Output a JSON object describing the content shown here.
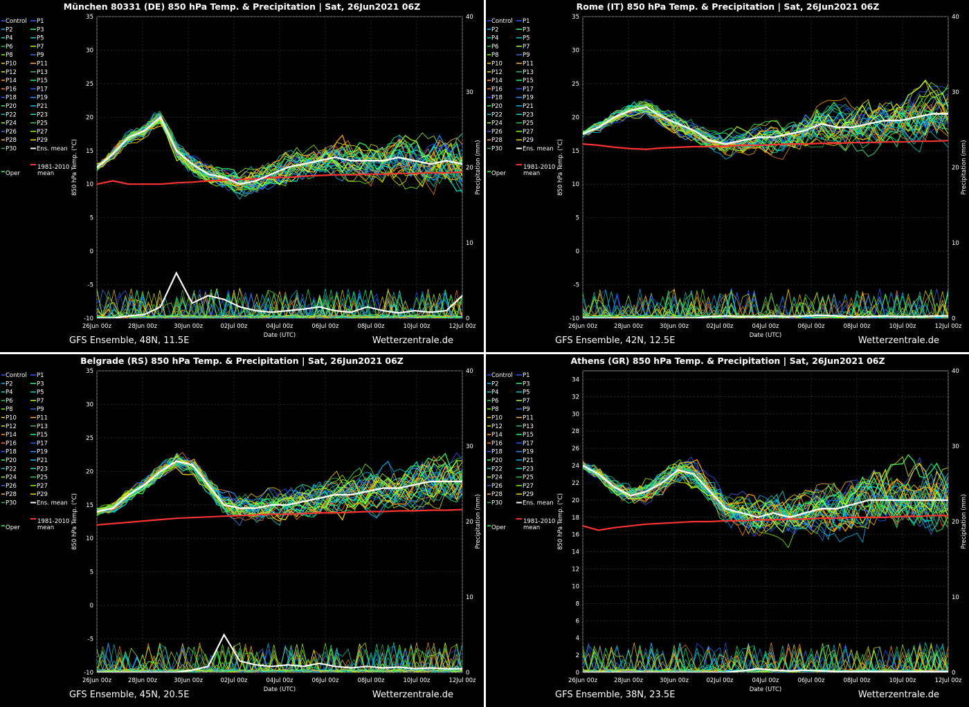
{
  "legend": {
    "left": [
      "Control",
      "P2",
      "P4",
      "P6",
      "P8",
      "P10",
      "P12",
      "P14",
      "P16",
      "P18",
      "P20",
      "P22",
      "P24",
      "P26",
      "P28",
      "P30"
    ],
    "right": [
      "P1",
      "P3",
      "P5",
      "P7",
      "P9",
      "P11",
      "P13",
      "P15",
      "P17",
      "P19",
      "P21",
      "P23",
      "P25",
      "P27",
      "P29",
      "Ens. mean"
    ],
    "clim_line1": "1981-2010",
    "clim_line2": "mean",
    "oper": "Oper"
  },
  "colors": {
    "clim": "#ff3333",
    "mean": "#ffffff",
    "members": [
      "#1e90ff",
      "#00bfff",
      "#00e5cc",
      "#22cc55",
      "#7cfc00",
      "#ffd700",
      "#e6e600",
      "#ffa500",
      "#ff7f24",
      "#2a5bff",
      "#33ff66",
      "#00ced1",
      "#adff2f",
      "#4169e1",
      "#ffb347",
      "#3cb371",
      "#00ff7f",
      "#1a5cff"
    ]
  },
  "chart_data": [
    {
      "type": "line",
      "title": "München 80331 (DE)  850 hPa Temp. & Precipitation | Sat, 26Jun2021 06Z",
      "footer_left": "GFS Ensemble, 48N, 11.5E",
      "footer_right": "Wetterzentrale.de",
      "xlabel": "Date (UTC)",
      "ylabel": "850 hPa Temp. (°C)",
      "y2label": "Precipitation (mm)",
      "x_ticks": [
        "26Jun 00z",
        "28Jun 00z",
        "30Jun 00z",
        "02Jul 00z",
        "04Jul 00z",
        "06Jul 00z",
        "08Jul 00z",
        "10Jul 00z",
        "12Jul 00z"
      ],
      "y_ticks": [
        -10,
        -5,
        0,
        5,
        10,
        15,
        20,
        25,
        30,
        35
      ],
      "y2_ticks": [
        0,
        10,
        20,
        30,
        40
      ],
      "ylim": [
        -10,
        35
      ],
      "y2lim": [
        0,
        40
      ],
      "ens_mean": [
        12.5,
        14.5,
        17,
        18,
        20,
        15,
        13,
        11.5,
        11,
        10,
        10.5,
        11.5,
        12.5,
        13,
        13.5,
        14,
        13.5,
        13.5,
        13.5,
        14,
        13.5,
        13,
        13.5,
        13
      ],
      "clim_mean": [
        10,
        10.5,
        10,
        10,
        10,
        10.2,
        10.3,
        10.5,
        10.6,
        10.7,
        10.8,
        11,
        11,
        11.2,
        11.3,
        11.4,
        11.4,
        11.5,
        11.5,
        11.6,
        11.6,
        11.7,
        11.7,
        11.8
      ],
      "mean_precip": [
        0,
        0,
        0.3,
        0.5,
        1.5,
        6,
        2,
        3,
        2.5,
        1.5,
        1,
        0.8,
        1,
        1.2,
        1.5,
        1,
        0.8,
        1.5,
        1,
        0.7,
        1,
        0.8,
        1,
        3
      ]
    },
    {
      "type": "line",
      "title": "Rome  (IT)  850 hPa Temp. & Precipitation | Sat, 26Jun2021 06Z",
      "footer_left": "GFS Ensemble, 42N, 12.5E",
      "footer_right": "Wetterzentrale.de",
      "xlabel": "Date (UTC)",
      "ylabel": "850 hPa Temp. (°C)",
      "y2label": "Precipitation (mm)",
      "x_ticks": [
        "26Jun 00z",
        "28Jun 00z",
        "30Jun 00z",
        "02Jul 00z",
        "04Jul 00z",
        "06Jul 00z",
        "08Jul 00z",
        "10Jul 00z",
        "12Jul 00z"
      ],
      "y_ticks": [
        -10,
        -5,
        0,
        5,
        10,
        15,
        20,
        25,
        30,
        35
      ],
      "y2_ticks": [
        0,
        10,
        20,
        30,
        40
      ],
      "ylim": [
        -10,
        35
      ],
      "y2lim": [
        0,
        40
      ],
      "ens_mean": [
        17.5,
        18.5,
        20,
        21,
        21.5,
        20,
        19,
        18,
        16.5,
        16,
        16.5,
        17,
        17,
        17.5,
        18,
        19,
        18.5,
        18.5,
        19,
        19.5,
        19.5,
        20,
        20.5,
        20.5
      ],
      "clim_mean": [
        16,
        15.8,
        15.5,
        15.3,
        15.2,
        15.4,
        15.5,
        15.6,
        15.6,
        15.7,
        15.8,
        15.8,
        15.9,
        16,
        16,
        16.1,
        16.1,
        16.2,
        16.2,
        16.3,
        16.3,
        16.4,
        16.4,
        16.5
      ],
      "mean_precip": [
        0,
        0,
        0,
        0,
        0,
        0,
        0,
        0,
        0.2,
        0.3,
        0.2,
        0.2,
        0.3,
        0.2,
        0.3,
        0.4,
        0.3,
        0.2,
        0.2,
        0.3,
        0.2,
        0.2,
        0.3,
        0.3
      ]
    },
    {
      "type": "line",
      "title": "Belgrade  (RS)  850 hPa Temp. & Precipitation | Sat, 26Jun2021 06Z",
      "footer_left": "GFS Ensemble, 45N, 20.5E",
      "footer_right": "Wetterzentrale.de",
      "xlabel": "Date (UTC)",
      "ylabel": "850 hPa Temp. (°C)",
      "y2label": "Precipitation (mm)",
      "x_ticks": [
        "26Jun 00z",
        "28Jun 00z",
        "30Jun 00z",
        "02Jul 00z",
        "04Jul 00z",
        "06Jul 00z",
        "08Jul 00z",
        "10Jul 00z",
        "12Jul 00z"
      ],
      "y_ticks": [
        -10,
        -5,
        0,
        5,
        10,
        15,
        20,
        25,
        30,
        35
      ],
      "y2_ticks": [
        0,
        10,
        20,
        30,
        40
      ],
      "ylim": [
        -10,
        35
      ],
      "y2lim": [
        0,
        40
      ],
      "ens_mean": [
        14,
        14.5,
        16.5,
        18,
        20,
        21.5,
        21,
        18,
        15,
        14.5,
        14.5,
        15,
        15,
        15.5,
        16,
        16.5,
        16.5,
        17,
        17.5,
        17.5,
        18,
        18.5,
        18.5,
        18.5
      ],
      "clim_mean": [
        12,
        12.2,
        12.4,
        12.6,
        12.8,
        13,
        13.1,
        13.2,
        13.3,
        13.4,
        13.5,
        13.6,
        13.6,
        13.7,
        13.8,
        13.8,
        13.9,
        14,
        14,
        14.1,
        14.1,
        14.2,
        14.2,
        14.3
      ],
      "mean_precip": [
        0,
        0,
        0,
        0,
        0,
        0,
        0.3,
        0.8,
        5,
        1.5,
        1,
        0.8,
        1,
        0.8,
        1.2,
        0.8,
        0.6,
        0.8,
        0.6,
        0.7,
        0.5,
        0.6,
        0.5,
        0.5
      ]
    },
    {
      "type": "line",
      "title": "Athens  (GR)  850 hPa Temp. & Precipitation | Sat, 26Jun2021 06Z",
      "footer_left": "GFS Ensemble, 38N, 23.5E",
      "footer_right": "Wetterzentrale.de",
      "xlabel": "Date (UTC)",
      "ylabel": "850 hPa Temp. (°C)",
      "y2label": "Precipitation (mm)",
      "x_ticks": [
        "26Jun 00z",
        "28Jun 00z",
        "30Jun 00z",
        "02Jul 00z",
        "04Jul 00z",
        "06Jul 00z",
        "08Jul 00z",
        "10Jul 00z",
        "12Jul 00z"
      ],
      "y_ticks": [
        0,
        2,
        4,
        6,
        8,
        10,
        12,
        14,
        16,
        18,
        20,
        22,
        24,
        26,
        28,
        30,
        32,
        34
      ],
      "y2_ticks": [
        0,
        10,
        20,
        30,
        40
      ],
      "ylim": [
        0,
        35
      ],
      "y2lim": [
        0,
        40
      ],
      "ens_mean": [
        24,
        23,
        21.5,
        20.5,
        21,
        22,
        23.5,
        23,
        21,
        19,
        18.5,
        18,
        18.5,
        18,
        18.5,
        19,
        19,
        19.5,
        20,
        20,
        20,
        20,
        20,
        20
      ],
      "clim_mean": [
        17,
        16.5,
        16.8,
        17,
        17.2,
        17.3,
        17.4,
        17.5,
        17.5,
        17.6,
        17.6,
        17.7,
        17.7,
        17.8,
        17.8,
        17.9,
        17.9,
        18,
        18,
        18,
        18.1,
        18.1,
        18.2,
        18.2
      ],
      "mean_precip": [
        0,
        0,
        0,
        0,
        0,
        0,
        0,
        0,
        0,
        0,
        0.2,
        0.5,
        0.3,
        0.2,
        0.3,
        0.2,
        0.1,
        0.1,
        0.1,
        0.1,
        0.1,
        0.1,
        0.1,
        0.1
      ]
    }
  ]
}
